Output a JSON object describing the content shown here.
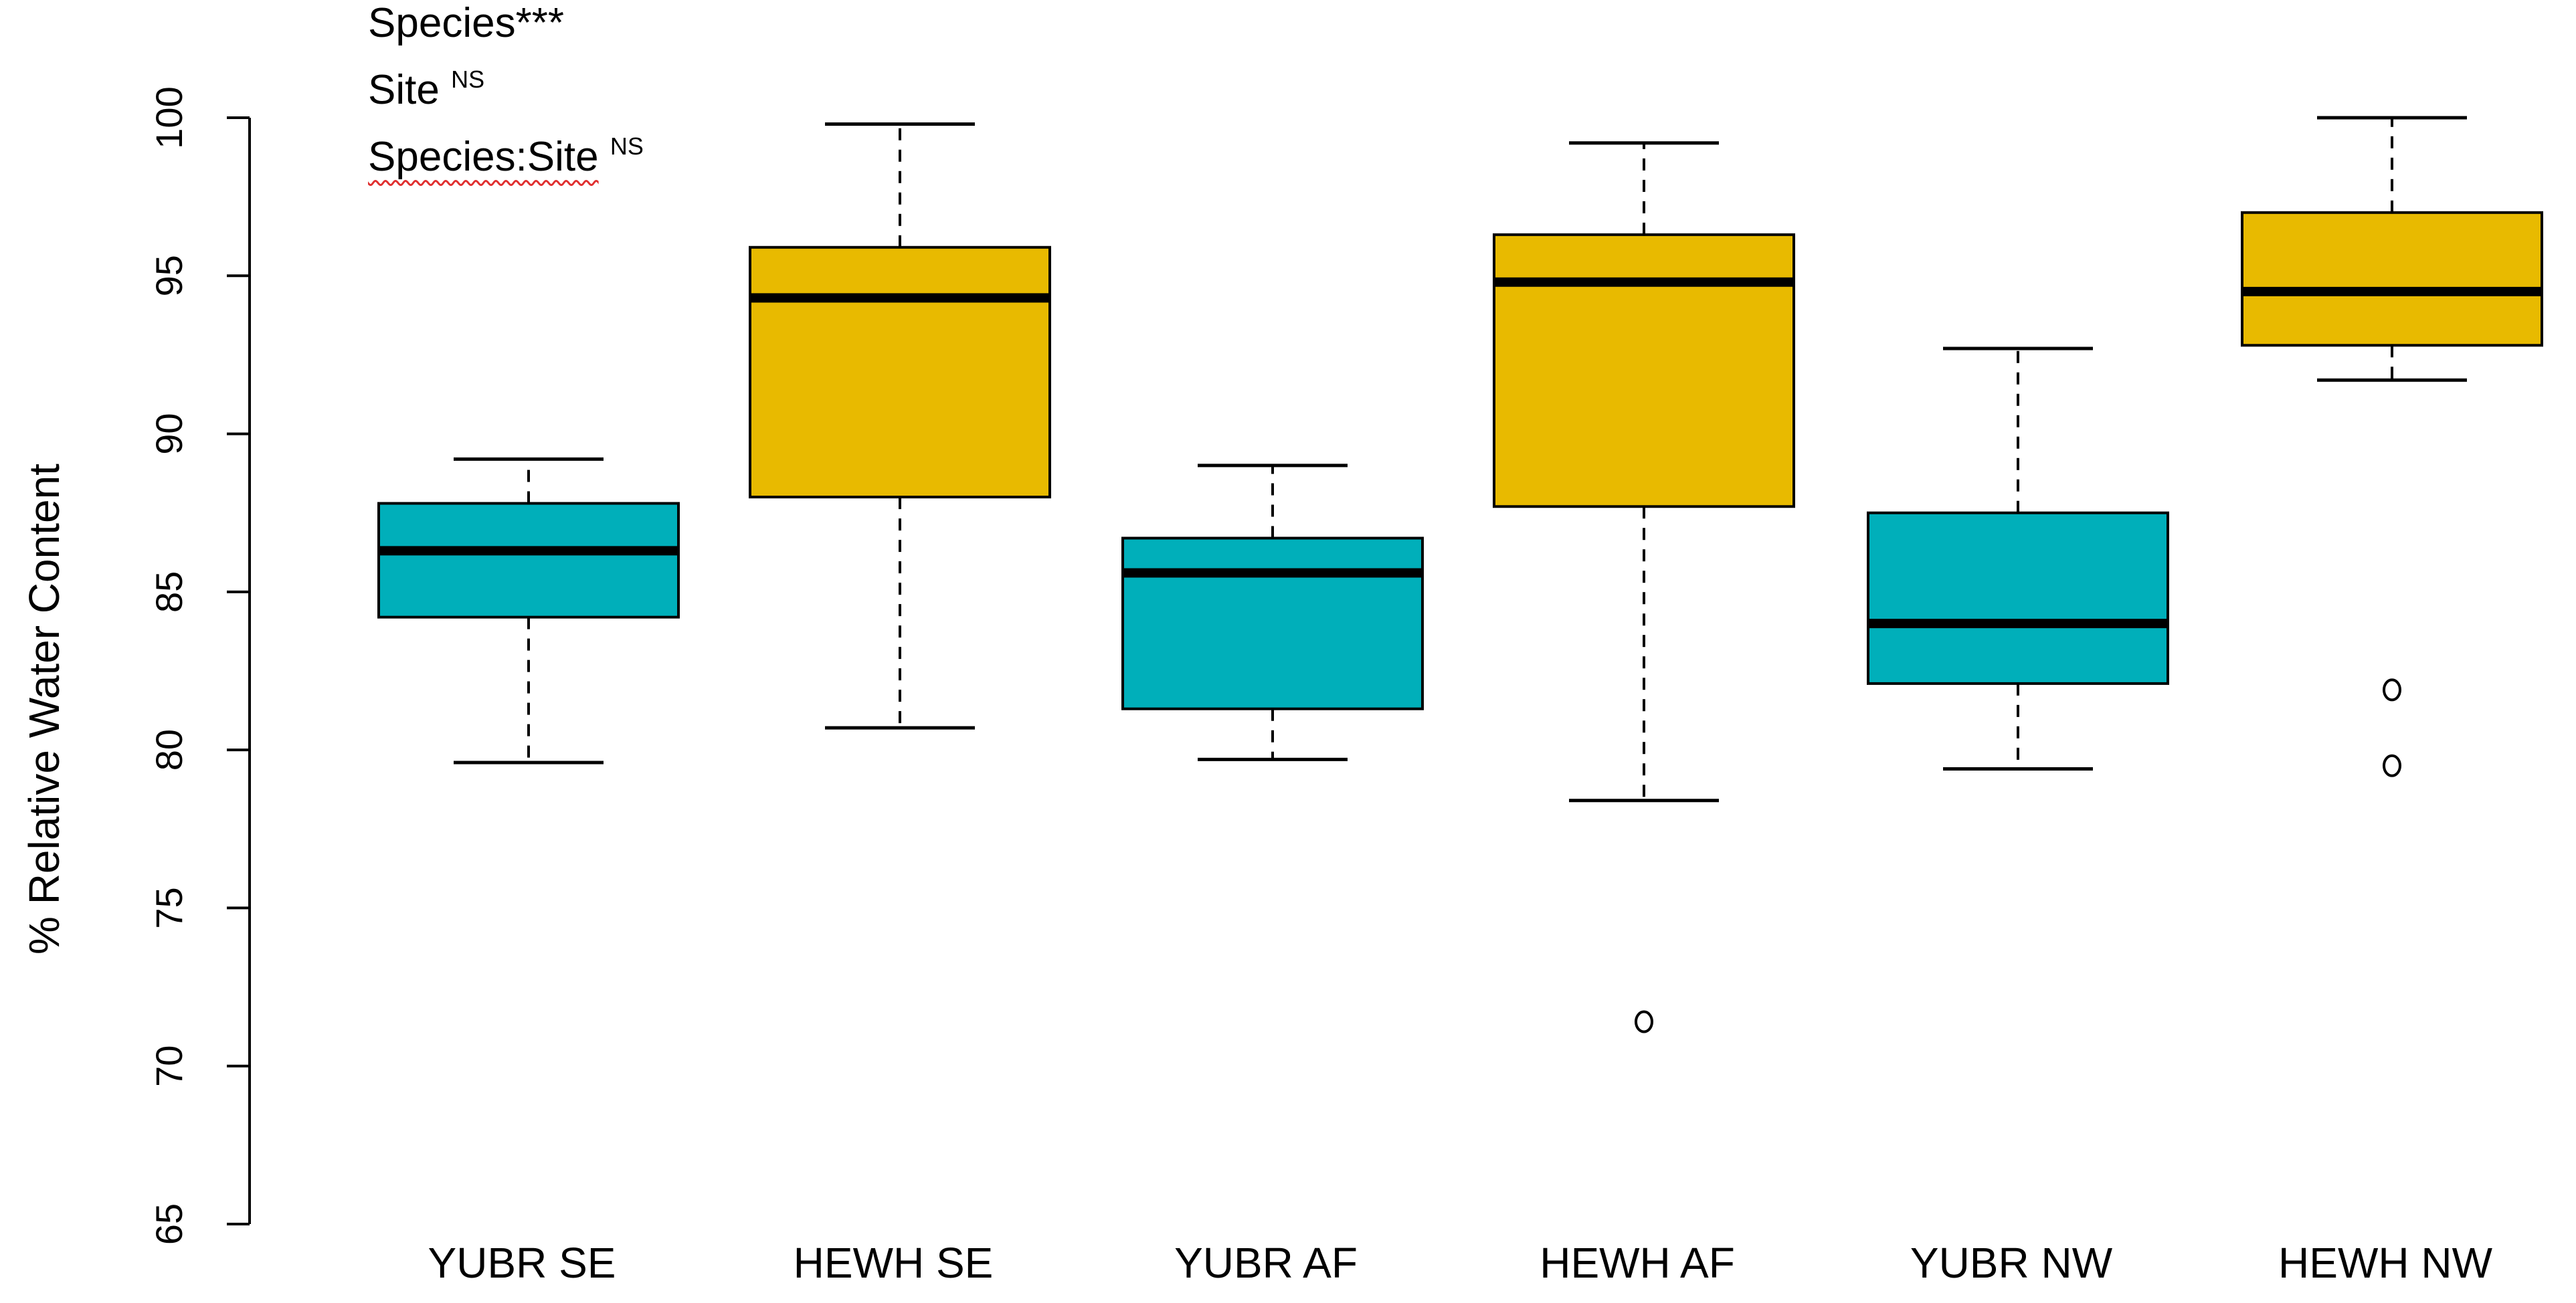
{
  "stats_annotation": [
    {
      "label": "Species",
      "sig": "***",
      "superscript": false
    },
    {
      "label": "Site",
      "sig": "NS",
      "superscript": true
    },
    {
      "label": "Species:Site",
      "sig": "NS",
      "superscript": true
    }
  ],
  "colors": {
    "YUBR": "#00afba",
    "HEWH": "#e8ba00",
    "median": "#000000",
    "whisker": "#000000",
    "axis": "#000000"
  },
  "chart_data": {
    "type": "box",
    "title": "",
    "xlabel": "",
    "ylabel": "% Relative Water Content",
    "ylim": [
      65,
      100
    ],
    "yticks": [
      65,
      70,
      75,
      80,
      85,
      90,
      95,
      100
    ],
    "grid": false,
    "categories": [
      "YUBR SE",
      "HEWH SE",
      "YUBR AF",
      "HEWH AF",
      "YUBR NW",
      "HEWH NW"
    ],
    "boxes": [
      {
        "category": "YUBR SE",
        "species": "YUBR",
        "whisker_low": 79.6,
        "q1": 84.2,
        "median": 86.3,
        "q3": 87.8,
        "whisker_high": 89.2,
        "outliers": []
      },
      {
        "category": "HEWH SE",
        "species": "HEWH",
        "whisker_low": 80.7,
        "q1": 88.0,
        "median": 94.3,
        "q3": 95.9,
        "whisker_high": 99.8,
        "outliers": []
      },
      {
        "category": "YUBR AF",
        "species": "YUBR",
        "whisker_low": 79.7,
        "q1": 81.3,
        "median": 85.6,
        "q3": 86.7,
        "whisker_high": 89.0,
        "outliers": []
      },
      {
        "category": "HEWH AF",
        "species": "HEWH",
        "whisker_low": 78.4,
        "q1": 87.7,
        "median": 94.8,
        "q3": 96.3,
        "whisker_high": 99.2,
        "outliers": [
          71.4
        ]
      },
      {
        "category": "YUBR NW",
        "species": "YUBR",
        "whisker_low": 79.4,
        "q1": 82.1,
        "median": 84.0,
        "q3": 87.5,
        "whisker_high": 92.7,
        "outliers": []
      },
      {
        "category": "HEWH NW",
        "species": "HEWH",
        "whisker_low": 91.7,
        "q1": 92.8,
        "median": 94.5,
        "q3": 97.0,
        "whisker_high": 100.0,
        "outliers": [
          81.9,
          79.5
        ]
      }
    ]
  }
}
